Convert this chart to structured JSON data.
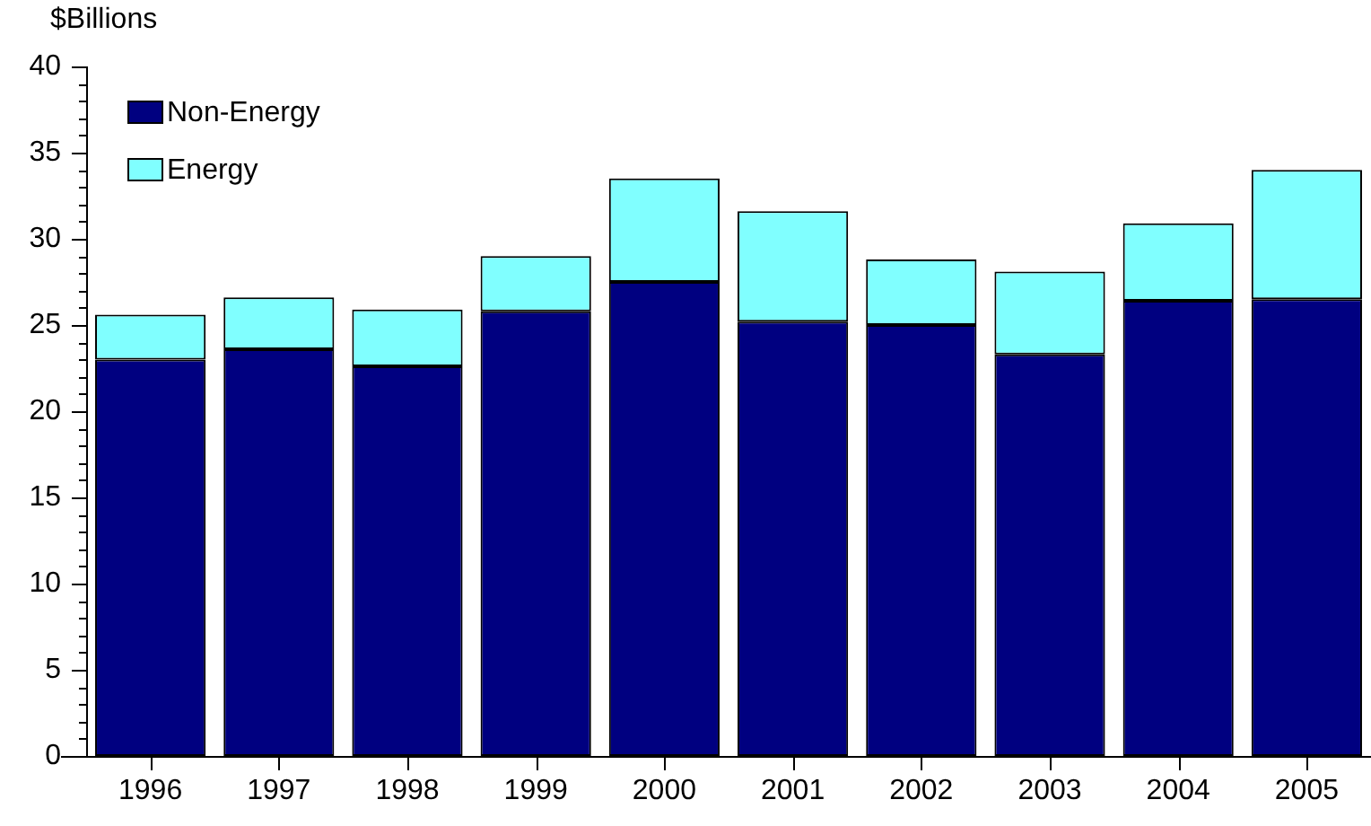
{
  "chart_data": {
    "type": "bar",
    "ylabel": "$Billions",
    "stacked": true,
    "legend": "top left",
    "grid": false,
    "categories": [
      "1996",
      "1997",
      "1998",
      "1999",
      "2000",
      "2001",
      "2002",
      "2003",
      "2004",
      "2005"
    ],
    "series": [
      {
        "name": "Non-Energy",
        "color": "#000080",
        "values": [
          23.0,
          23.6,
          22.6,
          25.8,
          27.5,
          25.2,
          25.0,
          23.3,
          26.4,
          26.5
        ]
      },
      {
        "name": "Energy",
        "color": "#80ffff",
        "values": [
          2.6,
          3.0,
          3.3,
          3.2,
          6.0,
          6.4,
          3.8,
          4.8,
          4.5,
          7.5
        ]
      }
    ],
    "ylim": [
      0,
      40
    ],
    "yticks": [
      0,
      5,
      10,
      15,
      20,
      25,
      30,
      35,
      40
    ]
  }
}
